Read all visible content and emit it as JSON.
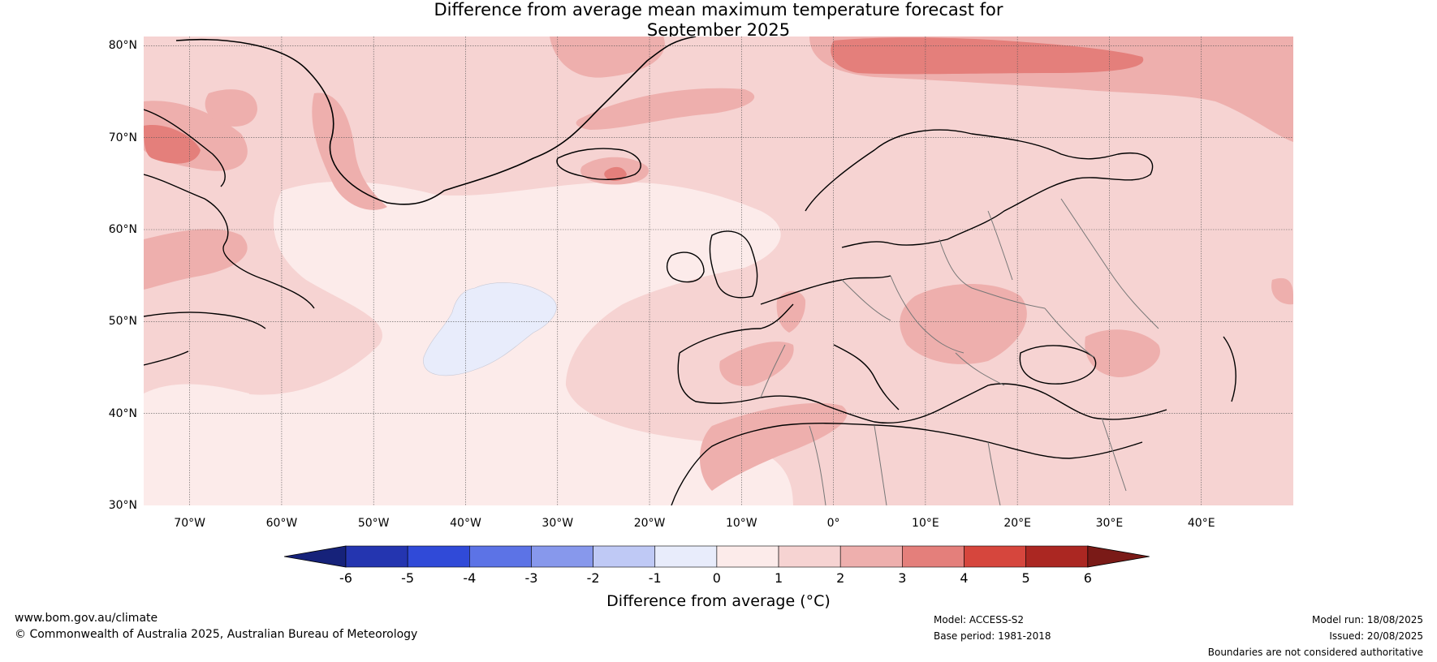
{
  "title_line1": "Difference from average mean maximum temperature forecast for",
  "title_line2": "September 2025",
  "lat_labels": [
    "80°N",
    "70°N",
    "60°N",
    "50°N",
    "40°N",
    "30°N"
  ],
  "lon_labels": [
    "70°W",
    "60°W",
    "50°W",
    "40°W",
    "30°W",
    "20°W",
    "10°W",
    "0°",
    "10°E",
    "20°E",
    "30°E",
    "40°E"
  ],
  "extent": {
    "lon": [
      -75,
      50
    ],
    "lat": [
      30,
      81
    ]
  },
  "colorbar": {
    "ticks": [
      "-6",
      "-5",
      "-4",
      "-3",
      "-2",
      "-1",
      "0",
      "1",
      "2",
      "3",
      "4",
      "5",
      "6"
    ],
    "colors": [
      "#16227a",
      "#2435b0",
      "#304ad8",
      "#5c73e6",
      "#8798ec",
      "#bfc9f5",
      "#e8ecfb",
      "#fcebea",
      "#f6d3d2",
      "#eeafad",
      "#e47f7b",
      "#d6463d",
      "#ab2722",
      "#7a1a17"
    ],
    "title": "Difference from average (°C)"
  },
  "footer": {
    "website": "www.bom.gov.au/climate",
    "copyright": "© Commonwealth of Australia 2025, Australian Bureau of Meteorology",
    "model": "Model: ACCESS-S2",
    "base_period": "Base period: 1981-2018",
    "model_run": "Model run: 18/08/2025",
    "issued": "Issued: 20/08/2025",
    "disclaimer": "Boundaries are not considered authoritative"
  }
}
